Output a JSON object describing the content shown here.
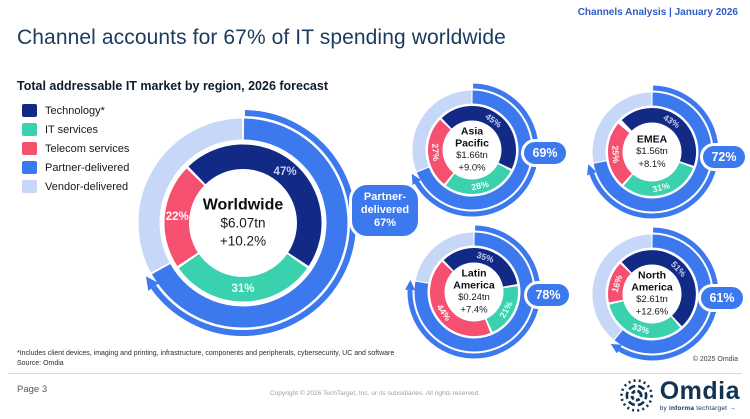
{
  "header": {
    "topright": "Channels Analysis | January 2026"
  },
  "title": "Channel accounts for 67% of IT spending worldwide",
  "subtitle": "Total addressable IT market by region, 2026 forecast",
  "legend": {
    "items": [
      {
        "label": "Technology*",
        "color": "#122a85"
      },
      {
        "label": "IT services",
        "color": "#3AD1AF"
      },
      {
        "label": "Telecom services",
        "color": "#F5506F"
      },
      {
        "label": "Partner-delivered",
        "color": "#3C78EE"
      },
      {
        "label": "Vendor-delivered",
        "color": "#C6D7F7"
      }
    ]
  },
  "chart_data": {
    "type": "donut",
    "title": "Total addressable IT market by region, 2026 forecast",
    "segment_series": [
      "Technology*",
      "IT services",
      "Telecom services"
    ],
    "outer_ring_series": [
      "Partner-delivered",
      "Vendor-delivered"
    ],
    "colors": {
      "segment_colors": [
        "#122a85",
        "#3AD1AF",
        "#F5506F"
      ],
      "partner": "#3C78EE",
      "vendor": "#C6D7F7",
      "label_colors": [
        "#c3cdf3",
        "rgba(255,255,255,0.92)",
        "rgba(255,255,255,0.95)"
      ]
    },
    "callout": {
      "lines": [
        "Partner-",
        "delivered",
        "67%"
      ]
    },
    "regions": [
      {
        "id": "worldwide",
        "name": "Worldwide",
        "value": "$6.07tn",
        "growth": "+10.2%",
        "segments": [
          47,
          31,
          22
        ],
        "partner_delivered": 67,
        "size": "large"
      },
      {
        "id": "asia-pacific",
        "name": "Asia Pacific",
        "value": "$1.66tn",
        "growth": "+9.0%",
        "segments": [
          45,
          28,
          27
        ],
        "partner_delivered": 69,
        "size": "small"
      },
      {
        "id": "emea",
        "name": "EMEA",
        "value": "$1.56tn",
        "growth": "+8.1%",
        "segments": [
          43,
          31,
          25
        ],
        "partner_delivered": 72,
        "size": "small"
      },
      {
        "id": "latin-america",
        "name": "Latin America",
        "value": "$0.24tn",
        "growth": "+7.4%",
        "segments": [
          35,
          21,
          44
        ],
        "partner_delivered": 78,
        "size": "small"
      },
      {
        "id": "north-america",
        "name": "North America",
        "value": "$2.61tn",
        "growth": "+12.6%",
        "segments": [
          51,
          33,
          16
        ],
        "partner_delivered": 61,
        "size": "small"
      }
    ]
  },
  "footnote": "*Includes client devices, imaging and printing, infrastructure, components and peripherals, cybersecurity, UC and software",
  "source": "Source: Omdia",
  "footer": {
    "page_label": "Page 3",
    "copyright": "Copyright © 2026 TechTarget, Inc. or its subsidiaries. All rights reserved.",
    "omdia_copyright": "© 2025 Omdia",
    "logo": {
      "wordmark": "Omdia",
      "tagline_by": "by",
      "tagline_informa": "informa",
      "tagline_techtarget": "techtarget",
      "tagline_arrow": "→"
    }
  }
}
